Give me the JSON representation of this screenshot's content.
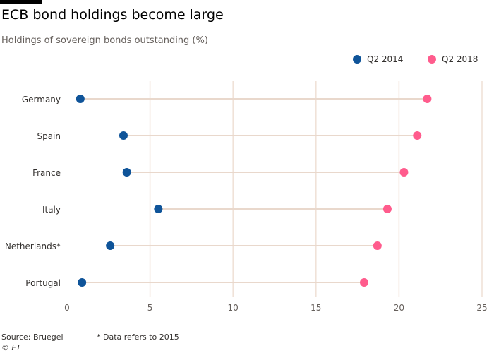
{
  "chart_data": {
    "type": "dumbbell",
    "title": "ECB bond holdings become large",
    "subtitle": "Holdings of sovereign bonds outstanding (%)",
    "categories": [
      "Germany",
      "Spain",
      "France",
      "Italy",
      "Netherlands*",
      "Portugal"
    ],
    "series": [
      {
        "name": "Q2 2014",
        "color": "#0f5499",
        "values": [
          0.8,
          3.4,
          3.6,
          5.5,
          2.6,
          0.9
        ]
      },
      {
        "name": "Q2 2018",
        "color": "#ff5c8d",
        "values": [
          21.7,
          21.1,
          20.3,
          19.3,
          18.7,
          17.9
        ]
      }
    ],
    "xlim": [
      0,
      25
    ],
    "xticks": [
      "0",
      "5",
      "10",
      "15",
      "20",
      "25"
    ],
    "grid": true,
    "legend": "top-right"
  },
  "footer": {
    "source": "Source: Bruegel",
    "note": "* Data refers to 2015",
    "copyright": "© FT"
  }
}
